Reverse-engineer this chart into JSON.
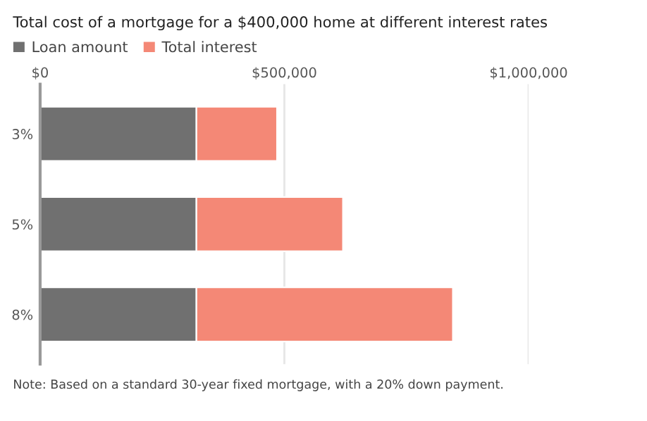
{
  "chart_data": {
    "type": "bar",
    "orientation": "horizontal",
    "stacked": true,
    "title": "Total cost of a mortgage for a $400,000 home at different interest rates",
    "categories": [
      "3%",
      "5%",
      "8%"
    ],
    "series": [
      {
        "name": "Loan amount",
        "color": "#707070",
        "values": [
          320000,
          320000,
          320000
        ]
      },
      {
        "name": "Total interest",
        "color": "#f48876",
        "values": [
          165000,
          300000,
          525000
        ]
      }
    ],
    "xlim": [
      0,
      1000000
    ],
    "xticks": [
      {
        "value": 0,
        "label": "$0"
      },
      {
        "value": 500000,
        "label": "$500,000"
      },
      {
        "value": 1000000,
        "label": "$1,000,000"
      }
    ],
    "grid": "x",
    "legend": "top left",
    "annotations": [
      "Note: Based on a standard 30-year fixed mortgage, with a 20% down payment."
    ]
  }
}
